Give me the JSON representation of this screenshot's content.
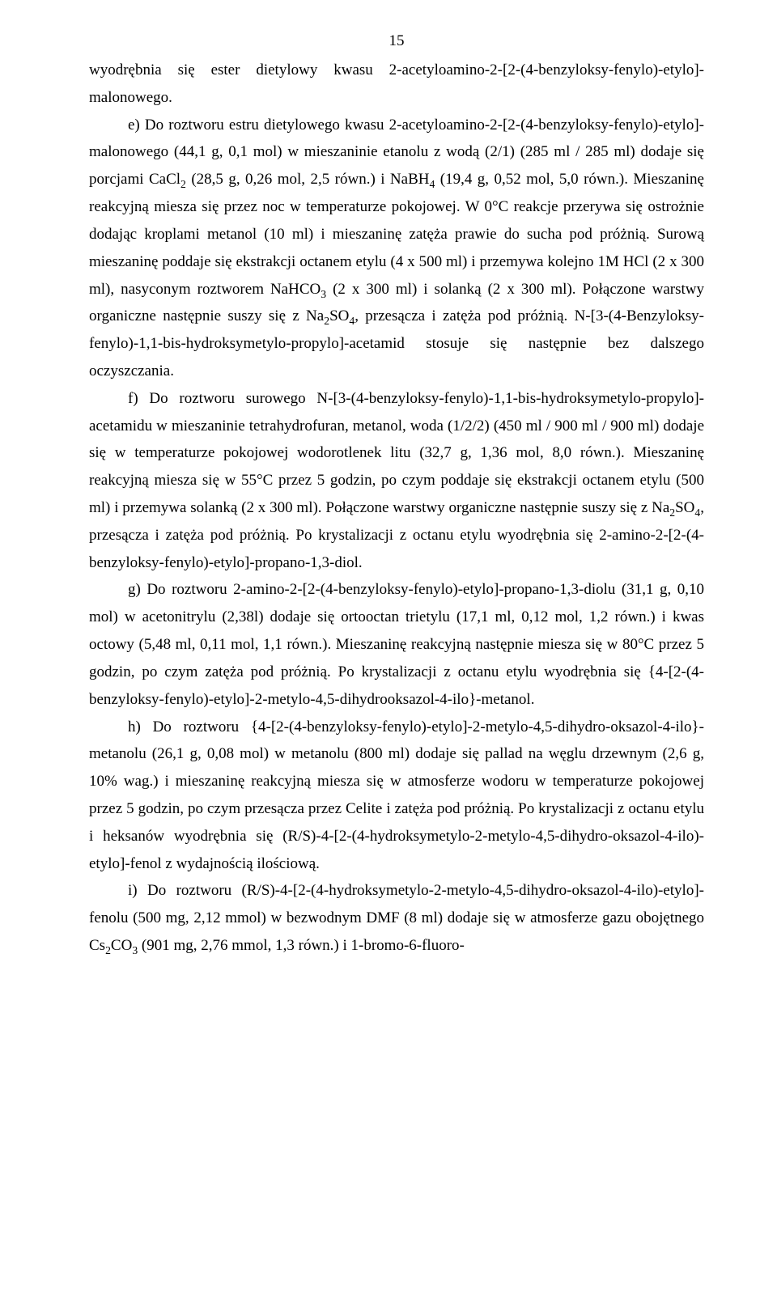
{
  "page_number": "15",
  "p1": "wyodrębnia się ester dietylowy kwasu 2-acetyloamino-2-[2-(4-benzyloksy-fenylo)-etylo]-malonowego.",
  "p2_a": "e) Do roztworu estru dietylowego kwasu 2-acetyloamino-2-[2-(4-benzyloksy-fenylo)-etylo]-malonowego (44,1 g, 0,1 mol) w mieszaninie etanolu z wodą (2/1) (285 ml / 285 ml) dodaje się porcjami CaCl",
  "p2_b": " (28,5 g, 0,26 mol, 2,5 równ.) i NaBH",
  "p2_c": " (19,4 g, 0,52 mol, 5,0 równ.). Mieszaninę reakcyjną miesza się przez noc w temperaturze pokojowej. W 0°C reakcje przerywa się ostrożnie dodając kroplami metanol (10 ml) i mieszaninę zatęża prawie do sucha pod próżnią. Surową mieszaninę poddaje się ekstrakcji octanem etylu (4 x 500 ml) i przemywa kolejno 1M HCl (2 x 300 ml), nasyconym roztworem NaHCO",
  "p2_d": " (2 x 300 ml) i solanką (2 x 300 ml). Połączone warstwy organiczne następnie suszy się z Na",
  "p2_e": "SO",
  "p2_f": ", przesącza i zatęża pod próżnią. N-[3-(4-Benzyloksy-fenylo)-1,1-bis-hydroksymetylo-propylo]-acetamid stosuje się następnie bez dalszego oczyszczania.",
  "p3_a": "f) Do roztworu surowego N-[3-(4-benzyloksy-fenylo)-1,1-bis-hydroksymetylo-propylo]-acetamidu w mieszaninie tetrahydrofuran, metanol, woda (1/2/2) (450 ml / 900 ml / 900 ml) dodaje się w temperaturze pokojowej wodorotlenek litu (32,7 g, 1,36 mol, 8,0 równ.). Mieszaninę reakcyjną miesza się w 55°C przez 5 godzin, po czym poddaje się ekstrakcji octanem etylu (500 ml) i przemywa solanką (2 x 300 ml). Połączone warstwy organiczne następnie suszy się z Na",
  "p3_b": "SO",
  "p3_c": ", przesącza i zatęża pod próżnią. Po krystalizacji z octanu etylu wyodrębnia się 2-amino-2-[2-(4-benzyloksy-fenylo)-etylo]-propano-1,3-diol.",
  "p4": "g) Do roztworu 2-amino-2-[2-(4-benzyloksy-fenylo)-etylo]-propano-1,3-diolu (31,1 g, 0,10 mol) w acetonitrylu (2,38l) dodaje się ortooctan trietylu (17,1 ml, 0,12 mol, 1,2 równ.) i kwas octowy (5,48 ml, 0,11 mol, 1,1 równ.). Mieszaninę reakcyjną następnie miesza się w 80°C przez 5 godzin, po czym zatęża pod próżnią. Po krystalizacji z octanu etylu wyodrębnia się {4-[2-(4-benzyloksy-fenylo)-etylo]-2-metylo-4,5-dihydrooksazol-4-ilo}-metanol.",
  "p5": "h) Do roztworu {4-[2-(4-benzyloksy-fenylo)-etylo]-2-metylo-4,5-dihydro-oksazol-4-ilo}-metanolu (26,1 g, 0,08 mol) w metanolu (800 ml) dodaje się pallad na węglu drzewnym (2,6 g, 10% wag.) i mieszaninę reakcyjną miesza się w atmosferze wodoru w temperaturze pokojowej przez 5 godzin, po czym przesącza przez Celite i zatęża pod próżnią. Po krystalizacji z octanu etylu i heksanów wyodrębnia się (R/S)-4-[2-(4-hydroksymetylo-2-metylo-4,5-dihydro-oksazol-4-ilo)-etylo]-fenol z wydajnością ilościową.",
  "p6_a": "i) Do roztworu (R/S)-4-[2-(4-hydroksymetylo-2-metylo-4,5-dihydro-oksazol-4-ilo)-etylo]-fenolu (500 mg, 2,12 mmol) w bezwodnym DMF (8 ml) dodaje się w atmosferze gazu obojętnego Cs",
  "p6_b": "CO",
  "p6_c": " (901 mg, 2,76 mmol, 1,3 równ.) i 1-bromo-6-fluoro-",
  "sub2": "2",
  "sub3": "3",
  "sub4": "4"
}
